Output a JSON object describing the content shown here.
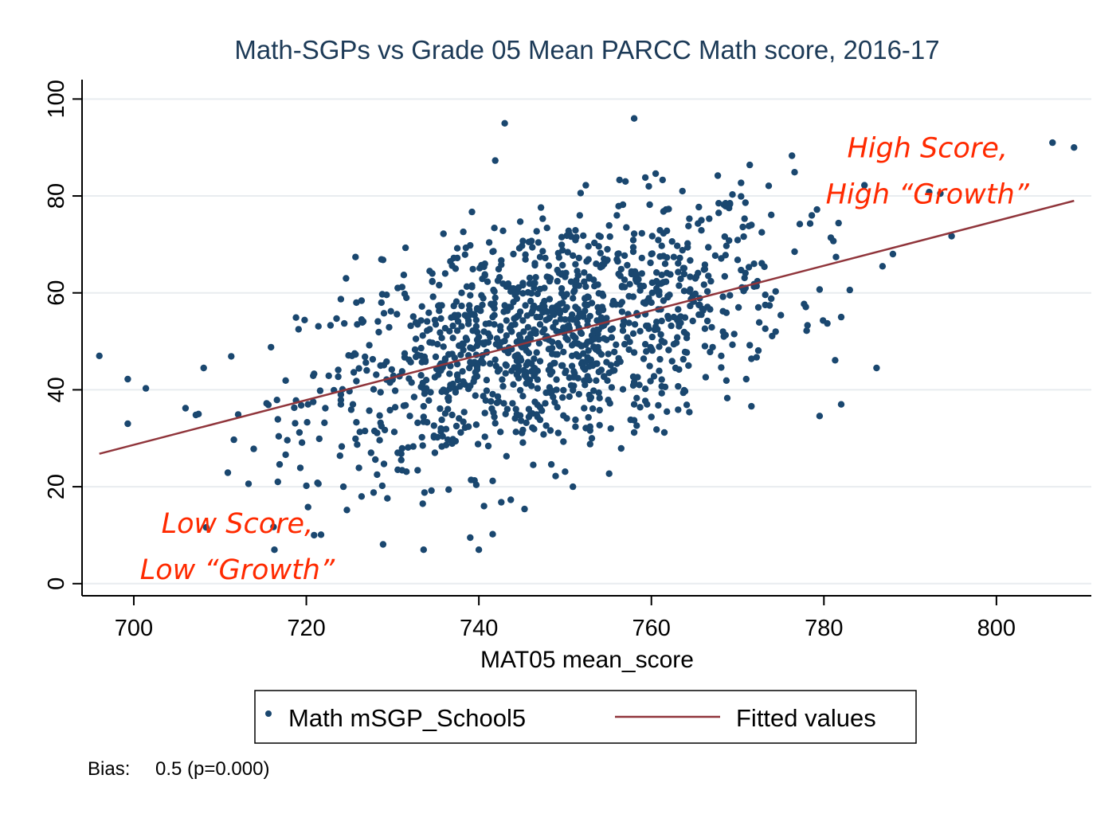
{
  "chart_data": {
    "type": "scatter",
    "title": "Math-SGPs vs Grade 05 Mean PARCC Math score, 2016-17",
    "xlabel": "MAT05 mean_score",
    "ylabel": "",
    "xlim": [
      694,
      811
    ],
    "ylim": [
      -2.5,
      104
    ],
    "x_ticks": [
      700,
      720,
      740,
      760,
      780,
      800
    ],
    "y_ticks": [
      0,
      20,
      40,
      60,
      80,
      100
    ],
    "grid": "horizontal",
    "colors": {
      "points": "#1a476f",
      "fit": "#90353b",
      "annotation": "#ff2a00",
      "title": "#1c3a57"
    },
    "legend_position": "bottom",
    "series": [
      {
        "name": "Math mSGP_School5",
        "kind": "scatter",
        "points_note": "sample",
        "points": []
      },
      {
        "name": "Fitted values",
        "kind": "line",
        "x": [
          696,
          809
        ],
        "y": [
          26.8,
          79.0
        ]
      }
    ],
    "annotations": [
      {
        "lines": [
          "High Score,",
          "High “Growth”"
        ],
        "x": 792,
        "y": 88,
        "anchor": "middle"
      },
      {
        "lines": [
          "Low Score,",
          "Low “Growth”"
        ],
        "x": 712,
        "y": 10.5,
        "anchor": "middle"
      }
    ],
    "note_label": "Bias:",
    "note_value": "0.5 (p=0.000)"
  }
}
